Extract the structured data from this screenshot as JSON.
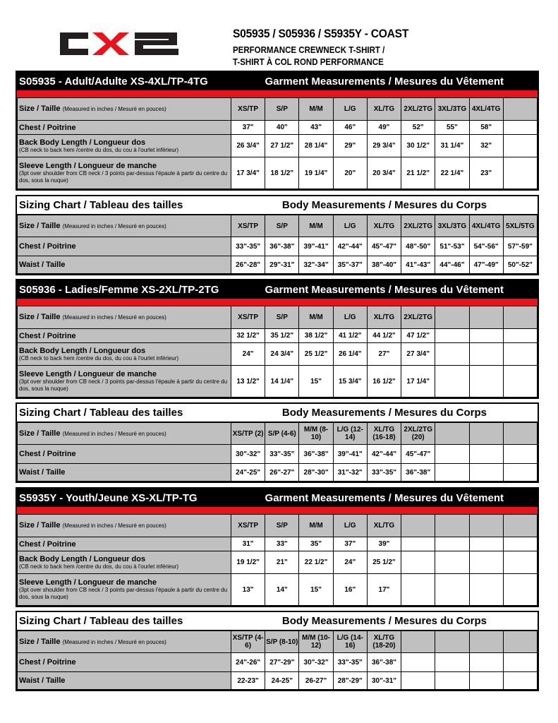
{
  "logo_text": "CX2",
  "header": {
    "title": "S05935 / S05936 / S5935Y -  COAST",
    "line1": "PERFORMANCE CREWNECK T-SHIRT /",
    "line2": "T-SHIRT À COL ROND PERFORMANCE"
  },
  "colors": {
    "accent": "#e8141b",
    "label_bg": "#c0c0c0"
  },
  "sections": [
    {
      "kind": "garment",
      "title": "S05935 - Adult/Adulte XS-4XL/TP-4TG",
      "subtitle": "Garment Measurements / Mesures du Vêtement",
      "size_label": "Size / Taille",
      "size_note": "(Measured in inches / Mesuré en pouces)",
      "columns": [
        "XS/TP",
        "S/P",
        "M/M",
        "L/G",
        "XL/TG",
        "2XL/2TG",
        "3XL/3TG",
        "4XL/4TG",
        ""
      ],
      "rows": [
        {
          "label": "Chest / Poitrine",
          "note": "",
          "values": [
            "37\"",
            "40\"",
            "43\"",
            "46\"",
            "49\"",
            "52\"",
            "55\"",
            "58\"",
            ""
          ]
        },
        {
          "label": "Back Body Length / Longueur dos",
          "note": "(CB neck to back hem /centre du dos, du cou à l'ourlet inférieur)",
          "values": [
            "26 3/4\"",
            "27 1/2\"",
            "28 1/4\"",
            "29\"",
            "29 3/4\"",
            "30 1/2\"",
            "31 1/4\"",
            "32\"",
            ""
          ]
        },
        {
          "label": "Sleeve Length / Longueur de manche",
          "note": "(3pt over shoulder from CB neck / 3 points par-dessus l'épaule à partir du centre du dos, sous la nuque)",
          "values": [
            "17 3/4\"",
            "18 1/2\"",
            "19 1/4\"",
            "20\"",
            "20 3/4\"",
            "21 1/2\"",
            "22 1/4\"",
            "23\"",
            ""
          ]
        }
      ]
    },
    {
      "kind": "body",
      "title": "Sizing Chart / Tableau des tailles",
      "subtitle": "Body Measurements / Mesures du Corps",
      "size_label": "Size / Taille",
      "size_note": "(Measured in inches / Mesuré en pouces)",
      "columns": [
        "XS/TP",
        "S/P",
        "M/M",
        "L/G",
        "XL/TG",
        "2XL/2TG",
        "3XL/3TG",
        "4XL/4TG",
        "5XL/5TG"
      ],
      "rows": [
        {
          "label": "Chest / Poitrine",
          "note": "",
          "values": [
            "33\"-35\"",
            "36\"-38\"",
            "39\"-41\"",
            "42\"-44\"",
            "45\"-47\"",
            "48\"-50\"",
            "51\"-53\"",
            "54\"-56\"",
            "57\"-59\""
          ]
        },
        {
          "label": "Waist / Taille",
          "note": "",
          "values": [
            "26\"-28\"",
            "29\"-31\"",
            "32\"-34\"",
            "35\"-37\"",
            "38\"-40\"",
            "41\"-43\"",
            "44\"-46\"",
            "47\"-49\"",
            "50\"-52\""
          ]
        }
      ]
    },
    {
      "kind": "garment",
      "title": "S05936 - Ladies/Femme XS-2XL/TP-2TG",
      "subtitle": "Garment Measurements / Mesures du Vêtement",
      "size_label": "Size / Taille",
      "size_note": "(Measured in inches / Mesuré en pouces)",
      "columns": [
        "XS/TP",
        "S/P",
        "M/M",
        "L/G",
        "XL/TG",
        "2XL/2TG",
        "",
        "",
        ""
      ],
      "rows": [
        {
          "label": "Chest / Poitrine",
          "note": "",
          "values": [
            "32 1/2\"",
            "35 1/2\"",
            "38 1/2\"",
            "41 1/2\"",
            "44 1/2\"",
            "47 1/2\"",
            "",
            "",
            ""
          ]
        },
        {
          "label": "Back Body Length / Longueur dos",
          "note": "(CB neck to back hem /centre du dos, du cou à l'ourlet inférieur)",
          "values": [
            "24\"",
            "24 3/4\"",
            "25 1/2\"",
            "26 1/4\"",
            "27\"",
            "27 3/4\"",
            "",
            "",
            ""
          ]
        },
        {
          "label": "Sleeve Length / Longueur de manche",
          "note": "(3pt over shoulder from CB neck / 3 points par-dessus l'épaule à partir du centre du dos, sous la nuque)",
          "values": [
            "13 1/2\"",
            "14 1/4\"",
            "15\"",
            "15 3/4\"",
            "16 1/2\"",
            "17 1/4\"",
            "",
            "",
            ""
          ]
        }
      ]
    },
    {
      "kind": "body",
      "title": "Sizing Chart / Tableau des tailles",
      "subtitle": "Body Measurements / Mesures du Corps",
      "size_label": "Size / Taille",
      "size_note": "(Measured in inches / Mesuré en pouces)",
      "columns": [
        "XS/TP (2)",
        "S/P (4-6)",
        "M/M (8-10)",
        "L/G (12-14)",
        "XL/TG (16-18)",
        "2XL/2TG (20)",
        "",
        "",
        ""
      ],
      "rows": [
        {
          "label": "Chest / Poitrine",
          "note": "",
          "values": [
            "30\"-32\"",
            "33\"-35\"",
            "36\"-38\"",
            "39\"-41\"",
            "42\"-44\"",
            "45\"-47\"",
            "",
            "",
            ""
          ]
        },
        {
          "label": "Waist / Taille",
          "note": "",
          "values": [
            "24\"-25\"",
            "26\"-27\"",
            "28\"-30\"",
            "31\"-32\"",
            "33\"-35\"",
            "36\"-38\"",
            "",
            "",
            ""
          ]
        }
      ]
    },
    {
      "kind": "garment",
      "title": "S5935Y - Youth/Jeune XS-XL/TP-TG",
      "subtitle": "Garment Measurements / Mesures du Vêtement",
      "size_label": "Size / Taille",
      "size_note": "(Measured in inches / Mesuré en pouces)",
      "columns": [
        "XS/TP",
        "S/P",
        "M/M",
        "L/G",
        "XL/TG",
        "",
        "",
        "",
        ""
      ],
      "rows": [
        {
          "label": "Chest / Poitrine",
          "note": "",
          "values": [
            "31\"",
            "33\"",
            "35\"",
            "37\"",
            "39\"",
            "",
            "",
            "",
            ""
          ]
        },
        {
          "label": "Back Body Length / Longueur dos",
          "note": "(CB neck to back hem /centre du dos, du cou à l'ourlet inférieur)",
          "values": [
            "19 1/2\"",
            "21\"",
            "22 1/2\"",
            "24\"",
            "25 1/2\"",
            "",
            "",
            "",
            ""
          ]
        },
        {
          "label": "Sleeve Length / Longueur de manche",
          "note": "(3pt over shoulder from CB neck / 3 points par-dessus l'épaule à partir du centre du dos, sous la nuque)",
          "values": [
            "13\"",
            "14\"",
            "15\"",
            "16\"",
            "17\"",
            "",
            "",
            "",
            ""
          ]
        }
      ]
    },
    {
      "kind": "body",
      "title": "Sizing Chart / Tableau des tailles",
      "subtitle": "Body Measurements / Mesures du Corps",
      "size_label": "Size / Taille",
      "size_note": "(Measured in inches / Mesuré en pouces)",
      "columns": [
        "XS/TP (4-6)",
        "S/P (8-10)",
        "M/M (10-12)",
        "L/G (14-16)",
        "XL/TG (18-20)",
        "",
        "",
        "",
        ""
      ],
      "rows": [
        {
          "label": "Chest / Poitrine",
          "note": "",
          "values": [
            "24\"-26\"",
            "27\"-29\"",
            "30\"-32\"",
            "33\"-35\"",
            "36\"-38\"",
            "",
            "",
            "",
            ""
          ]
        },
        {
          "label": "Waist / Taille",
          "note": "",
          "values": [
            "22-23\"",
            "24-25\"",
            "26-27\"",
            "28\"-29\"",
            "30\"-31\"",
            "",
            "",
            "",
            ""
          ]
        }
      ]
    }
  ]
}
